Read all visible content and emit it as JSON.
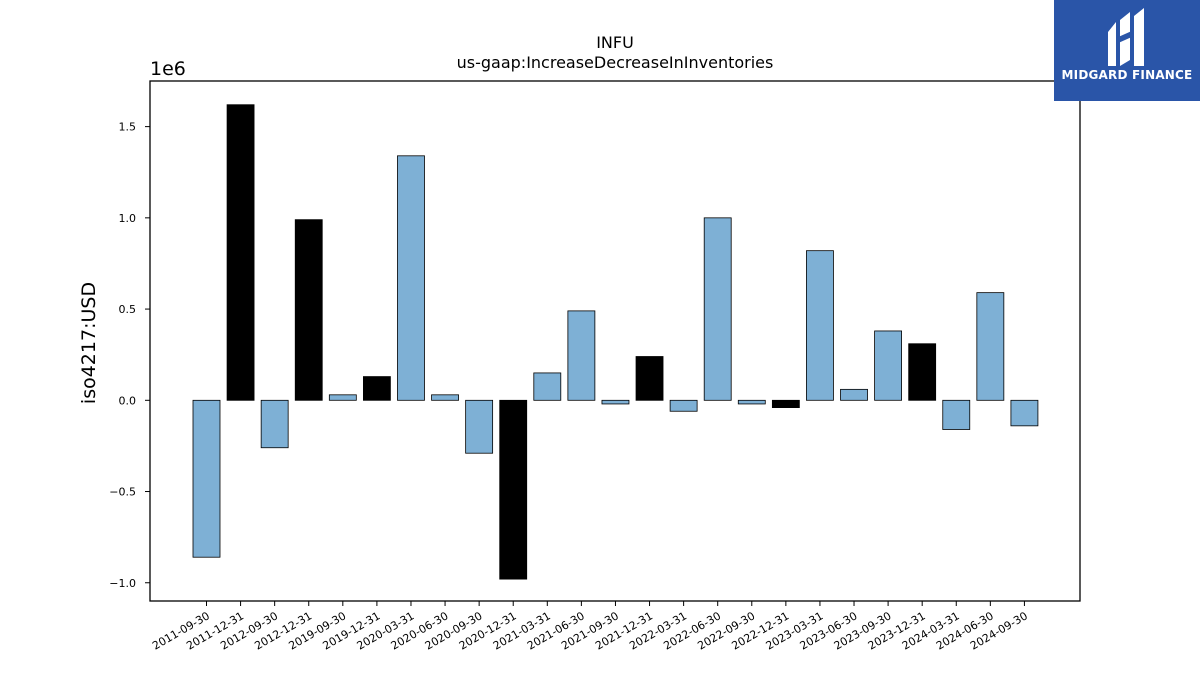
{
  "logo": {
    "text": "MIDGARD FINANCE",
    "background": "#2a55a8"
  },
  "chart_data": {
    "type": "bar",
    "title": "INFU",
    "subtitle": "us-gaap:IncreaseDecreaseInInventories",
    "ylabel": "iso4217:USD",
    "y_offset_label": "1e6",
    "xlabel": "",
    "ylim": [
      -1.1,
      1.75
    ],
    "yticks": [
      -1.0,
      -0.5,
      0.0,
      0.5,
      1.0,
      1.5
    ],
    "ytick_labels": [
      "−1.0",
      "−0.5",
      "0.0",
      "0.5",
      "1.0",
      "1.5"
    ],
    "categories": [
      "2011-09-30",
      "2011-12-31",
      "2012-09-30",
      "2012-12-31",
      "2019-09-30",
      "2019-12-31",
      "2020-03-31",
      "2020-06-30",
      "2020-09-30",
      "2020-12-31",
      "2021-03-31",
      "2021-06-30",
      "2021-09-30",
      "2021-12-31",
      "2022-03-31",
      "2022-06-30",
      "2022-09-30",
      "2022-12-31",
      "2023-03-31",
      "2023-06-30",
      "2023-09-30",
      "2023-12-31",
      "2024-03-31",
      "2024-06-30",
      "2024-09-30"
    ],
    "values": [
      -0.86,
      1.62,
      -0.26,
      0.99,
      0.03,
      0.13,
      1.34,
      0.03,
      -0.29,
      -0.98,
      0.15,
      0.49,
      -0.02,
      0.24,
      -0.06,
      1.0,
      -0.02,
      -0.04,
      0.82,
      0.06,
      0.38,
      0.31,
      -0.16,
      0.59,
      -0.14
    ],
    "highlight": [
      false,
      true,
      false,
      true,
      false,
      true,
      false,
      false,
      false,
      true,
      false,
      false,
      false,
      true,
      false,
      false,
      false,
      true,
      false,
      false,
      false,
      true,
      false,
      false,
      false
    ],
    "colors": {
      "bar": "#7eb0d5",
      "highlight": "#000000",
      "edge": "#000000"
    },
    "grid": false,
    "legend": "none"
  }
}
